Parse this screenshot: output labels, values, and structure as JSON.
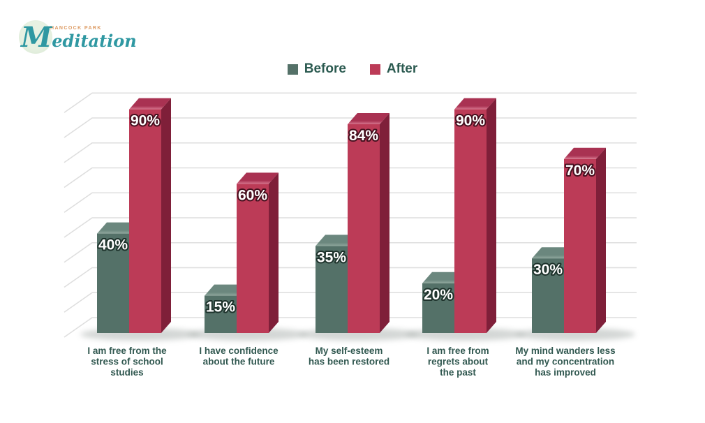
{
  "logo": {
    "brand_top": "HANCOCK PARK",
    "brand_script": "Meditation"
  },
  "legend": {
    "before_label": "Before",
    "after_label": "After"
  },
  "colors": {
    "before_front": "#547168",
    "before_top_back": "#6b877e",
    "before_top_front": "#90a89e",
    "before_side": "#3d574f",
    "before_outline": "#1e332c",
    "after_front": "#bc3b57",
    "after_top_back": "#a93252",
    "after_top_front": "#d6768e",
    "after_side": "#7f1f39",
    "after_outline": "#47101f",
    "grid": "#dedede",
    "axis_text": "#315850",
    "legend_text": "#2b5a50",
    "value_text": "#ffffff",
    "shadow": "#9fa6a3",
    "logo_teal": "#2f98a2",
    "logo_tan": "#dd9b63",
    "logo_circle": "#d9e8d4"
  },
  "chart_data": {
    "type": "bar",
    "style": "3d-clustered",
    "unit": "%",
    "title": "",
    "xlabel": "",
    "ylabel": "",
    "ylim": [
      0,
      100
    ],
    "grid": true,
    "gridlines_percent": [
      0,
      10,
      20,
      30,
      40,
      50,
      60,
      70,
      80,
      90
    ],
    "legend_position": "top-center",
    "categories": [
      "I am free from the stress of school studies",
      "I have confidence about the future",
      "My self-esteem has been restored",
      "I am free from regrets about the past",
      "My mind wanders less and my concentration has improved"
    ],
    "category_lines": [
      [
        "I am free from the",
        "stress of school",
        "studies"
      ],
      [
        "I have confidence",
        "about the future"
      ],
      [
        "My self-esteem",
        "has been restored"
      ],
      [
        "I am free from",
        "regrets about",
        "the past"
      ],
      [
        "My mind wanders less",
        "and my concentration",
        "has improved"
      ]
    ],
    "series": [
      {
        "name": "Before",
        "values": [
          40,
          15,
          35,
          20,
          30
        ]
      },
      {
        "name": "After",
        "values": [
          90,
          60,
          84,
          90,
          70
        ]
      }
    ],
    "value_labels": [
      [
        "40%",
        "90%"
      ],
      [
        "15%",
        "60%"
      ],
      [
        "35%",
        "84%"
      ],
      [
        "20%",
        "90%"
      ],
      [
        "30%",
        "70%"
      ]
    ]
  }
}
